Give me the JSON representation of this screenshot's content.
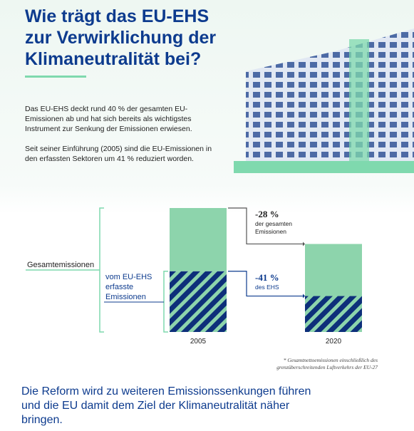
{
  "header": {
    "title": "Wie trägt das EU-EHS zur Verwirklichung der Klimaneutralität bei?"
  },
  "intro": [
    "Das EU-EHS deckt rund 40 % der gesamten EU-Emissionen ab und hat sich bereits als wichtigstes Instrument zur Senkung der Emissionen erwiesen.",
    "Seit seiner Einführung (2005) sind die EU-Emissionen in den erfassten Sektoren um 41 % reduziert worden."
  ],
  "chart_data": {
    "type": "bar",
    "stacked": true,
    "categories": [
      "2005",
      "2020"
    ],
    "series": [
      {
        "name": "vom EU-EHS erfasste Emissionen",
        "color": "#0d2f7a",
        "values": [
          49,
          29
        ]
      },
      {
        "color": "#8dd4ac",
        "values": [
          51,
          42
        ]
      }
    ],
    "ylim": [
      0,
      100
    ],
    "total_label": "Gesamtemissionen",
    "annotations": [
      {
        "value_label": "-28 %",
        "text": "der gesamten Emissionen"
      },
      {
        "value_label": "-41 %",
        "text": "des EHS"
      }
    ],
    "footnote": "* Gesamtnettoemissionen einschließlich des grenzüberschreitenden Luftverkehrs der EU-27"
  },
  "closing": "Die Reform wird zu weiteren Emissionssenkungen führen und die EU damit dem Ziel der Klimaneutralität näher bringen."
}
